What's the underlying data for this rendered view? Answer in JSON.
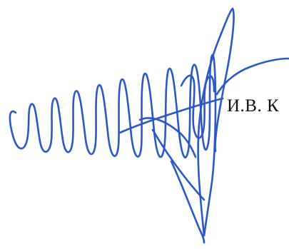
{
  "document": {
    "printed_name": "И.В. К",
    "signature_ink_color": "#2a57c9",
    "signature_kind": "handwritten-signature"
  }
}
